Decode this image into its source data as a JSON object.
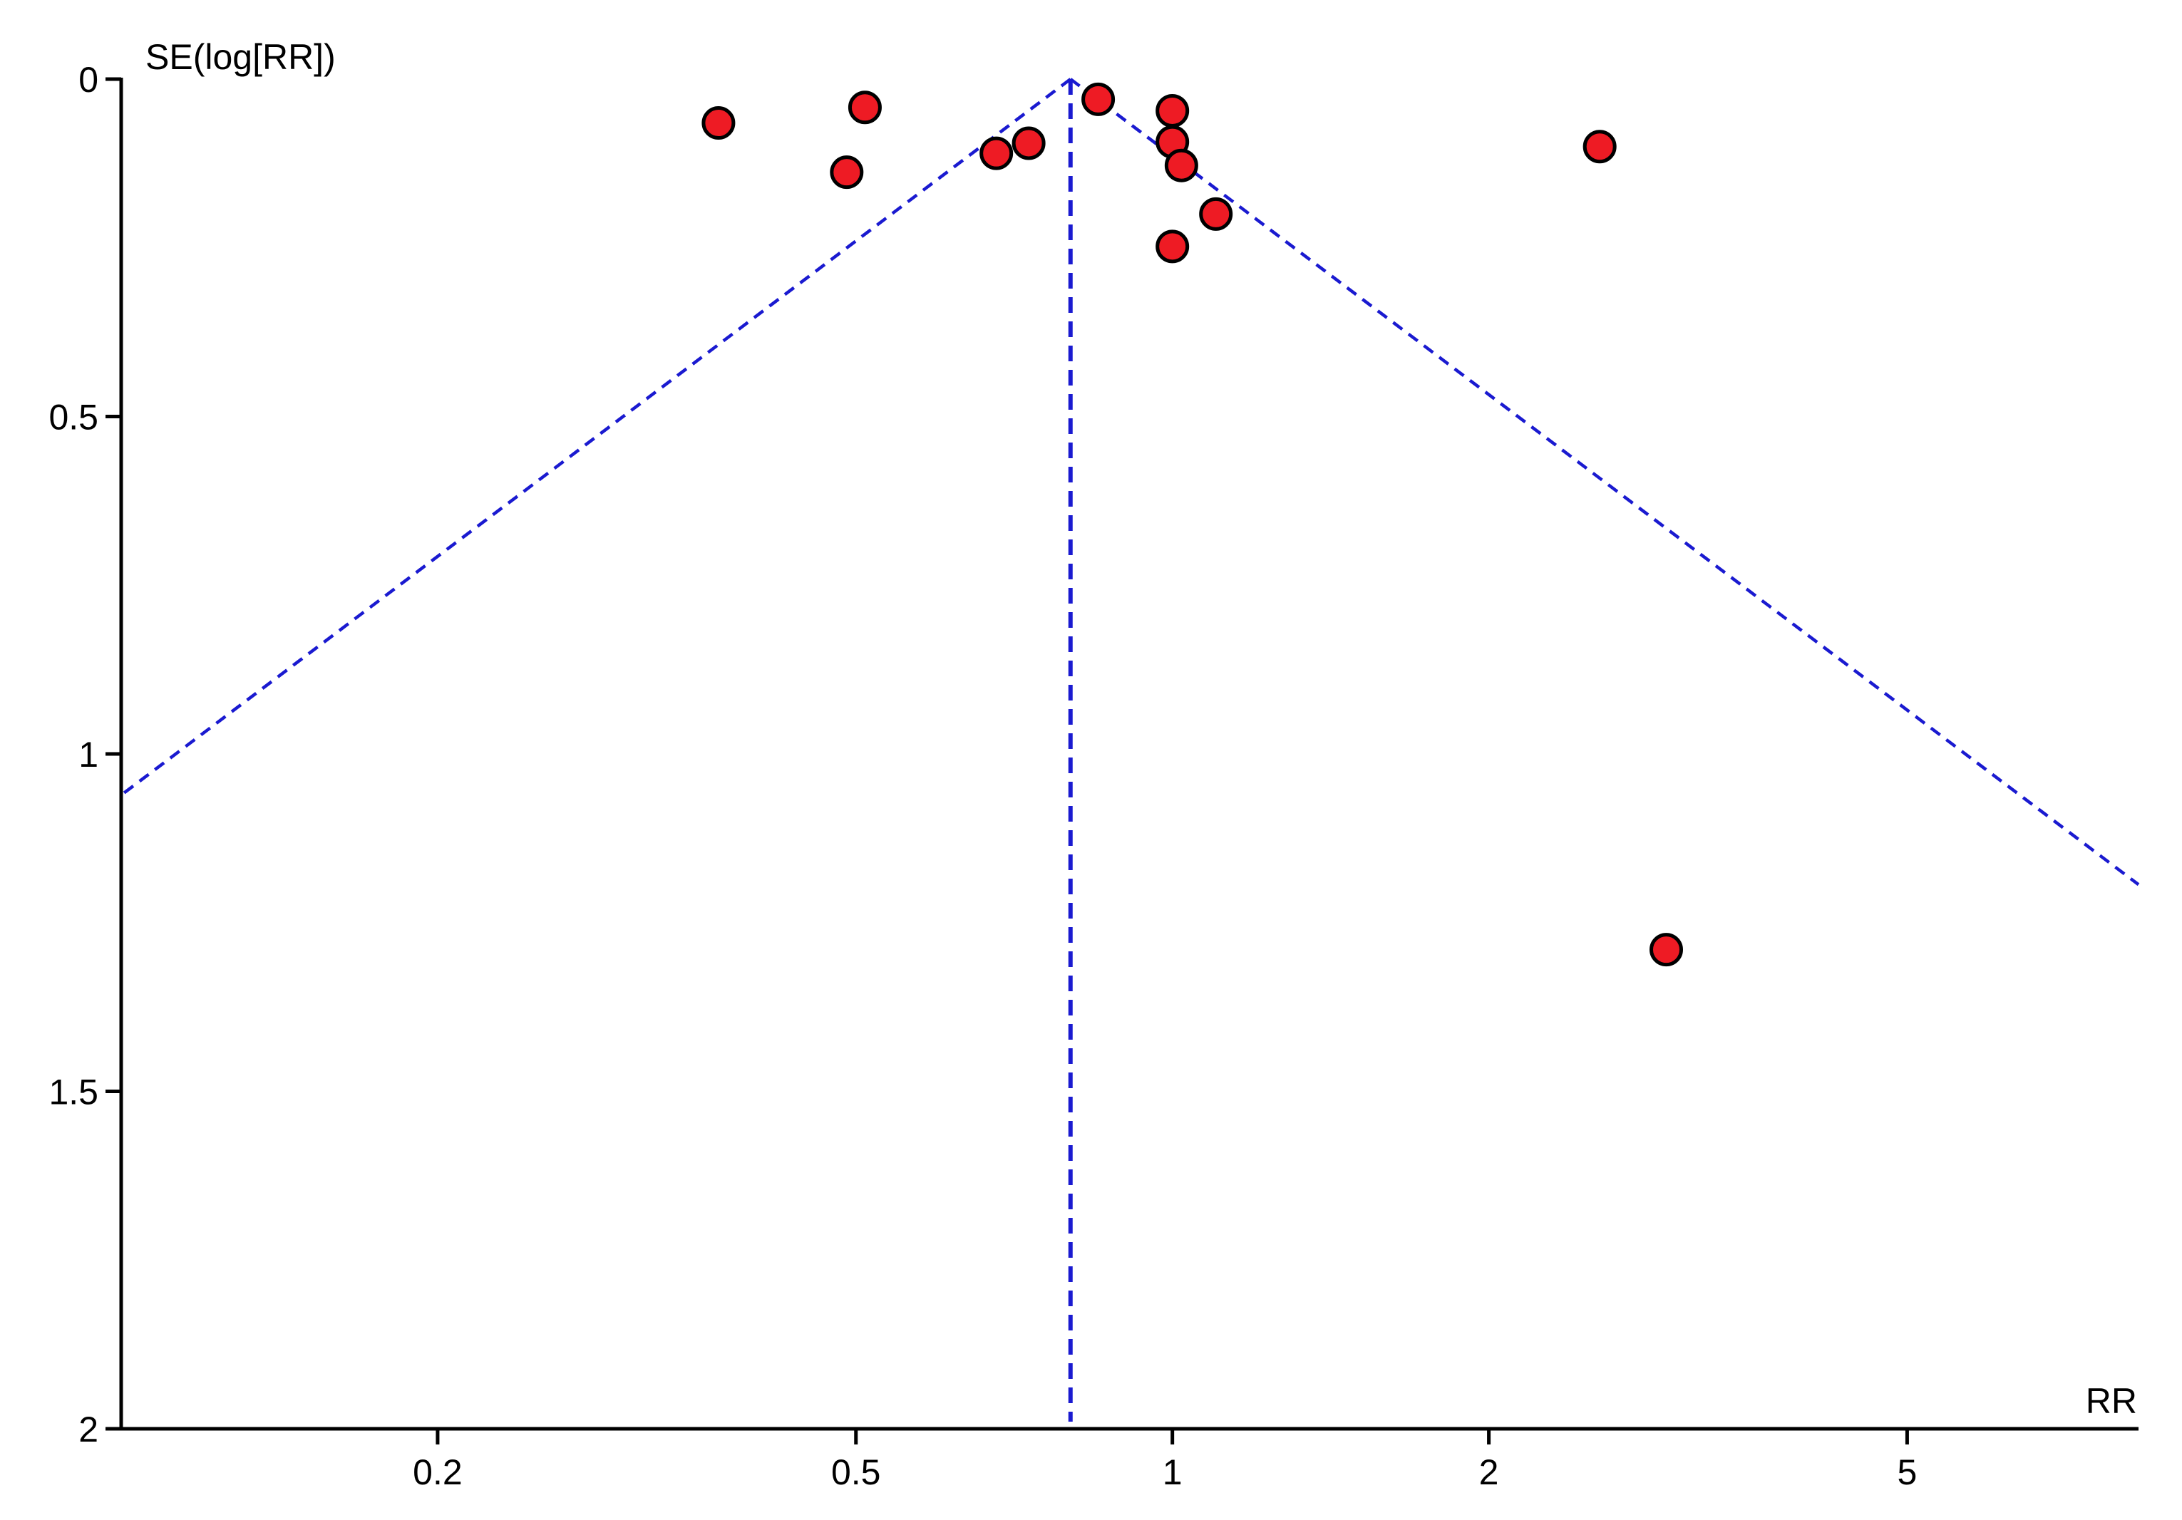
{
  "chart_data": {
    "type": "scatter",
    "subtype": "funnel-plot",
    "xlabel": "RR",
    "ylabel": "SE(log[RR])",
    "x_scale": "log",
    "y_inverted": true,
    "xlim": [
      0.1,
      8.3
    ],
    "ylim": [
      0,
      2
    ],
    "x_ticks": [
      {
        "value": 0.2,
        "label": "0.2"
      },
      {
        "value": 0.5,
        "label": "0.5"
      },
      {
        "value": 1,
        "label": "1"
      },
      {
        "value": 2,
        "label": "2"
      },
      {
        "value": 5,
        "label": "5"
      }
    ],
    "y_ticks": [
      {
        "value": 0,
        "label": "0"
      },
      {
        "value": 0.5,
        "label": "0.5"
      },
      {
        "value": 1,
        "label": "1"
      },
      {
        "value": 1.5,
        "label": "1.5"
      },
      {
        "value": 2,
        "label": "2"
      }
    ],
    "pooled_estimate": 0.8,
    "funnel_limit_z": 1.96,
    "grid": false,
    "colors": {
      "points": "#ee1b24",
      "point_outline": "#000000",
      "guide_lines": "#1a1ad0",
      "axes": "#000000"
    },
    "points": [
      {
        "x": 0.37,
        "y": 0.065
      },
      {
        "x": 0.51,
        "y": 0.042
      },
      {
        "x": 0.49,
        "y": 0.138
      },
      {
        "x": 0.68,
        "y": 0.11
      },
      {
        "x": 0.73,
        "y": 0.095
      },
      {
        "x": 0.85,
        "y": 0.03
      },
      {
        "x": 1.0,
        "y": 0.047
      },
      {
        "x": 1.0,
        "y": 0.093
      },
      {
        "x": 1.02,
        "y": 0.128
      },
      {
        "x": 1.1,
        "y": 0.2
      },
      {
        "x": 1.0,
        "y": 0.248
      },
      {
        "x": 2.55,
        "y": 0.1
      },
      {
        "x": 2.95,
        "y": 1.29
      }
    ]
  }
}
